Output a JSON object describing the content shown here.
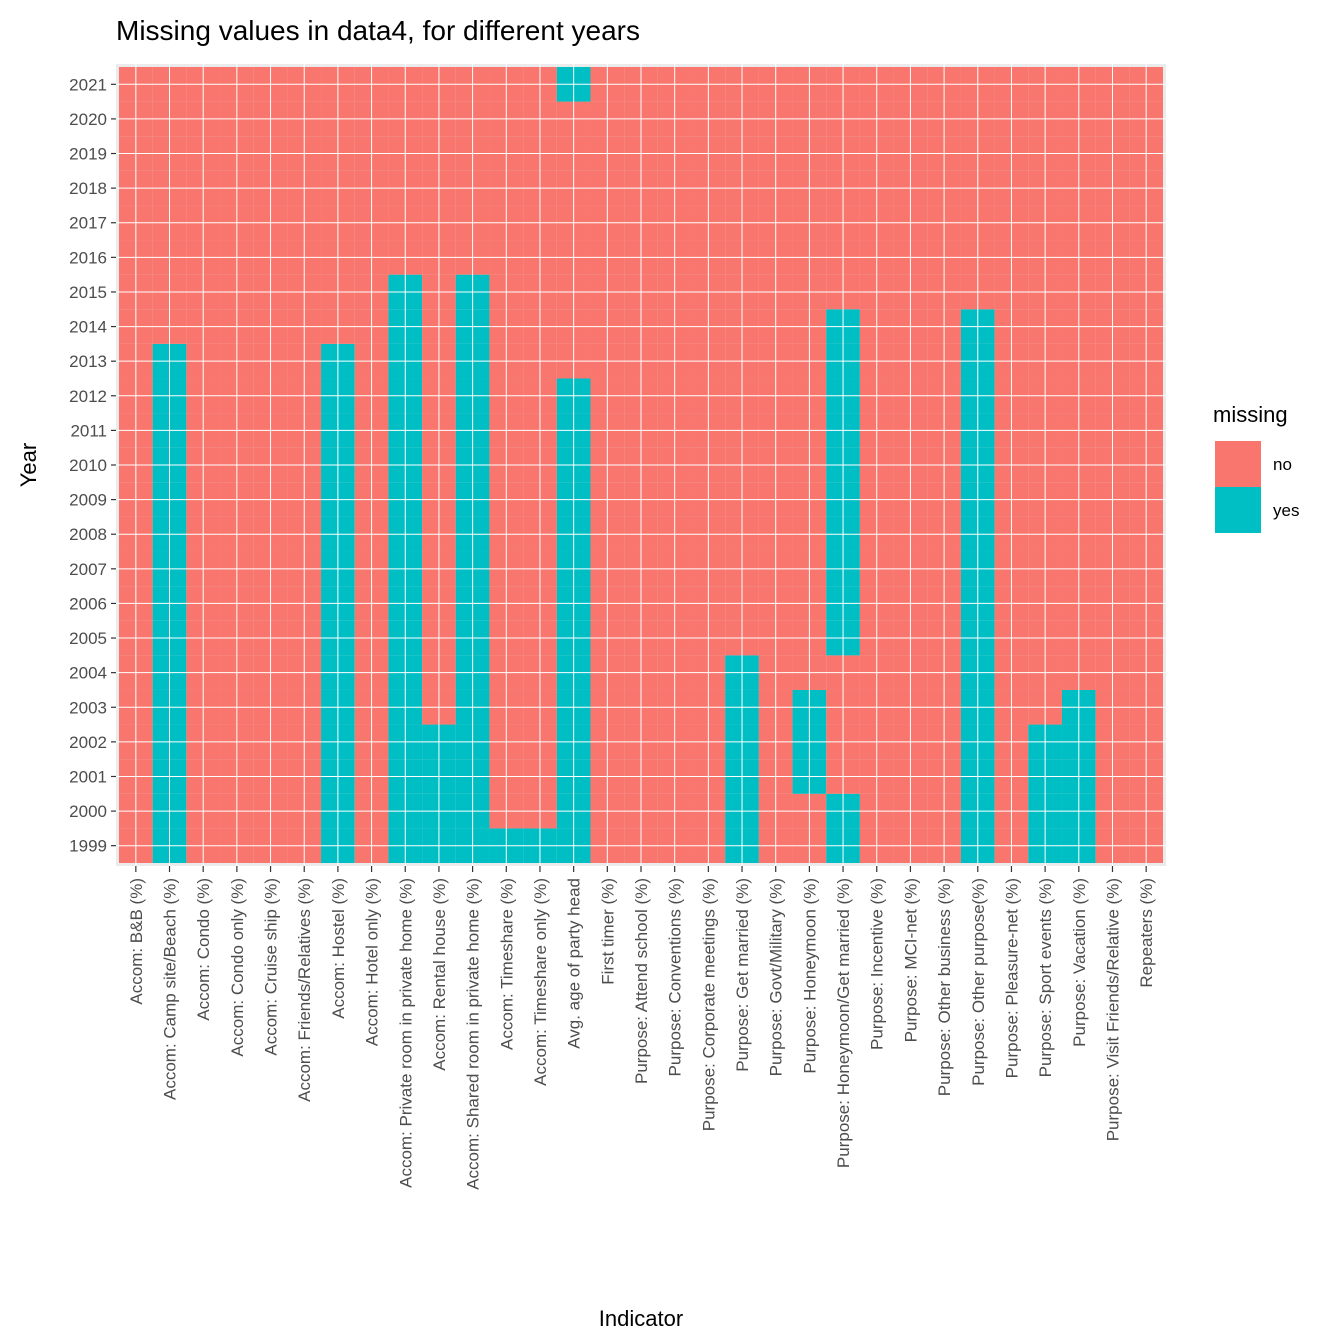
{
  "chart_data": {
    "type": "heatmap",
    "title": "Missing values in data4, for different years",
    "xlabel": "Indicator",
    "ylabel": "Year",
    "x_categories": [
      "Accom: B&B (%)",
      "Accom: Camp site/Beach (%)",
      "Accom: Condo (%)",
      "Accom: Condo only (%)",
      "Accom: Cruise ship (%)",
      "Accom: Friends/Relatives (%)",
      "Accom: Hostel (%)",
      "Accom: Hotel only (%)",
      "Accom: Private room in private home (%)",
      "Accom: Rental house (%)",
      "Accom: Shared room in private home (%)",
      "Accom: Timeshare (%)",
      "Accom: Timeshare only (%)",
      "Avg. age of party head",
      "First timer (%)",
      "Purpose: Attend school (%)",
      "Purpose: Conventions (%)",
      "Purpose: Corporate meetings (%)",
      "Purpose: Get married (%)",
      "Purpose: Govt/Military (%)",
      "Purpose: Honeymoon (%)",
      "Purpose: Honeymoon/Get married (%)",
      "Purpose: Incentive (%)",
      "Purpose: MCI-net (%)",
      "Purpose: Other business (%)",
      "Purpose: Other purpose(%)",
      "Purpose: Pleasure-net (%)",
      "Purpose: Sport events (%)",
      "Purpose: Vacation (%)",
      "Purpose: Visit Friends/Relative (%)",
      "Repeaters (%)"
    ],
    "y_categories": [
      "1999",
      "2000",
      "2001",
      "2002",
      "2003",
      "2004",
      "2005",
      "2006",
      "2007",
      "2008",
      "2009",
      "2010",
      "2011",
      "2012",
      "2013",
      "2014",
      "2015",
      "2016",
      "2017",
      "2018",
      "2019",
      "2020",
      "2021"
    ],
    "missing_yes": {
      "Accom: Camp site/Beach (%)": [
        "1999",
        "2013"
      ],
      "Accom: Hostel (%)": [
        "1999",
        "2013"
      ],
      "Accom: Private room in private home (%)": [
        "1999",
        "2015"
      ],
      "Accom: Rental house (%)": [
        "1999",
        "2002"
      ],
      "Accom: Shared room in private home (%)": [
        "1999",
        "2015"
      ],
      "Accom: Timeshare (%)": [
        "1999",
        "1999"
      ],
      "Accom: Timeshare only (%)": [
        "1999",
        "1999"
      ],
      "Avg. age of party head": [
        [
          "1999",
          "2012"
        ],
        [
          "2021",
          "2021"
        ]
      ],
      "Purpose: Get married (%)": [
        "1999",
        "2004"
      ],
      "Purpose: Honeymoon (%)": [
        "2001",
        "2003"
      ],
      "Purpose: Honeymoon/Get married (%)": [
        [
          "1999",
          "2000"
        ],
        [
          "2005",
          "2014"
        ]
      ],
      "Purpose: Other purpose(%)": [
        "1999",
        "2014"
      ],
      "Purpose: Sport events (%)": [
        "1999",
        "2002"
      ],
      "Purpose: Vacation (%)": [
        "1999",
        "2003"
      ]
    },
    "legend": {
      "title": "missing",
      "placement": "right",
      "entries": [
        {
          "label": "no",
          "color": "#F8766D"
        },
        {
          "label": "yes",
          "color": "#00BFC4"
        }
      ]
    },
    "grid": true
  },
  "colors": {
    "no": "#F8766D",
    "yes": "#00BFC4",
    "panel": "#EBEBEB",
    "grid": "#FFFFFF"
  }
}
